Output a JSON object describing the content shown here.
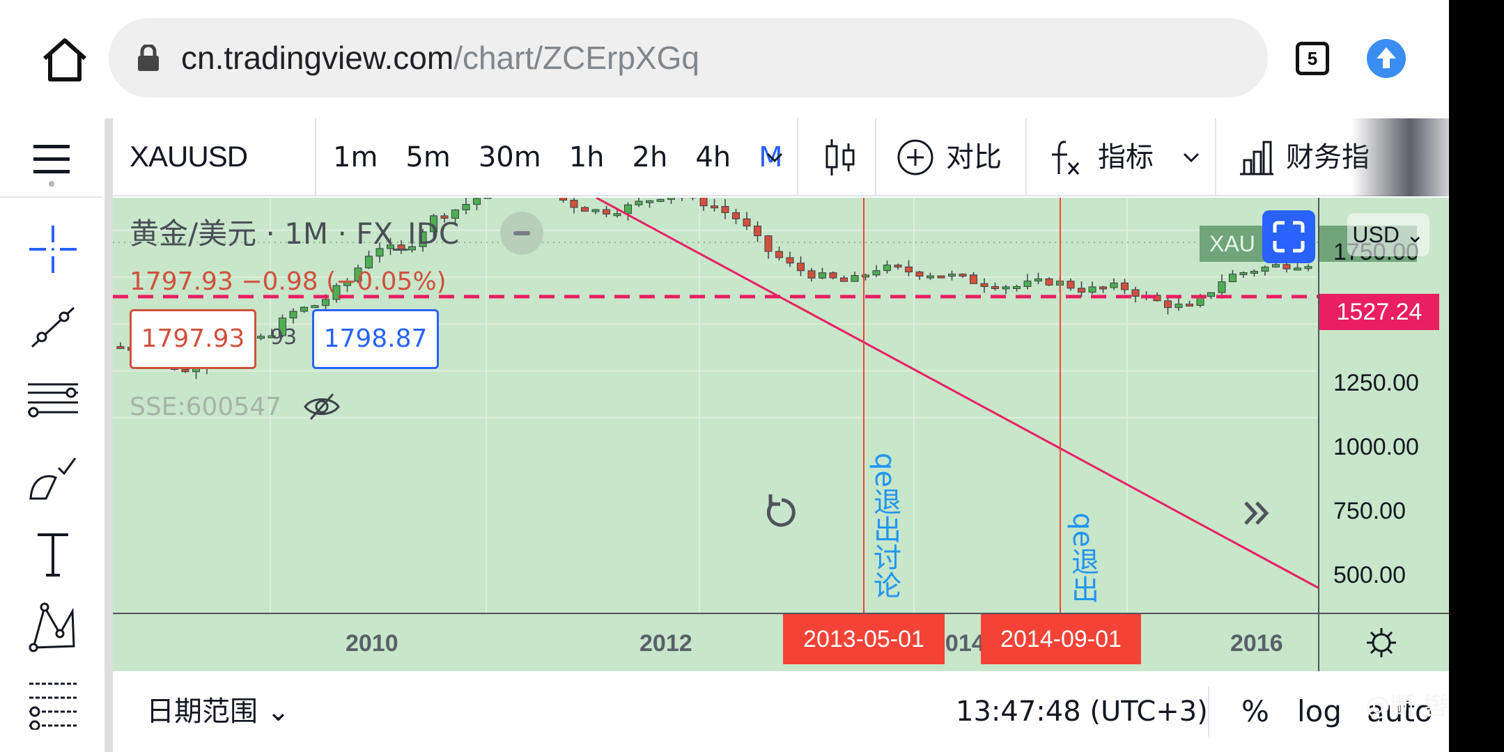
{
  "browser": {
    "url_host": "cn.tradingview.com",
    "url_path": "/chart/ZCErpXGq",
    "tab_count": "5",
    "icons": [
      "home-icon",
      "lock-icon",
      "update-arrow-icon"
    ]
  },
  "toolbar": {
    "symbol": "XAUUSD",
    "intervals": [
      "1m",
      "5m",
      "30m",
      "1h",
      "2h",
      "4h",
      "M"
    ],
    "active_interval": "M",
    "compare_label": "对比",
    "indicators_label": "指标",
    "financials_label": "财务指"
  },
  "legend": {
    "title": "黄金/美元 · 1M · FX_IDC",
    "ohlc": "1797.93  −0.98 (−0.05%)",
    "bid": "1797.93",
    "spread": "93",
    "ask": "1798.87",
    "overlay_symbol": "SSE:600547"
  },
  "price_axis": {
    "currency": "USD",
    "labels": [
      "1750.00",
      "1250.00",
      "1000.00",
      "750.00",
      "500.00"
    ],
    "current_price_badge": "1527.24",
    "symbol_tag": "XAU"
  },
  "time_axis": {
    "years": [
      "2010",
      "2012",
      "2014",
      "2016"
    ],
    "markers": [
      "2013-05-01",
      "2014-09-01"
    ]
  },
  "annotations": [
    "qe退出讨论",
    "qe退出"
  ],
  "bottom_bar": {
    "date_range_label": "日期范围",
    "clock": "13:47:48 (UTC+3)",
    "percent": "%",
    "log": "log",
    "auto": "auto"
  },
  "watermark": "@断 辔",
  "colors": {
    "chart_bg": "#c8e6c9",
    "up_candle": "#4caf50",
    "down_candle": "#d0513c",
    "trend_line": "#e91e63",
    "marker": "#f44336",
    "accent": "#2962ff",
    "annotation": "#2196f3"
  }
}
